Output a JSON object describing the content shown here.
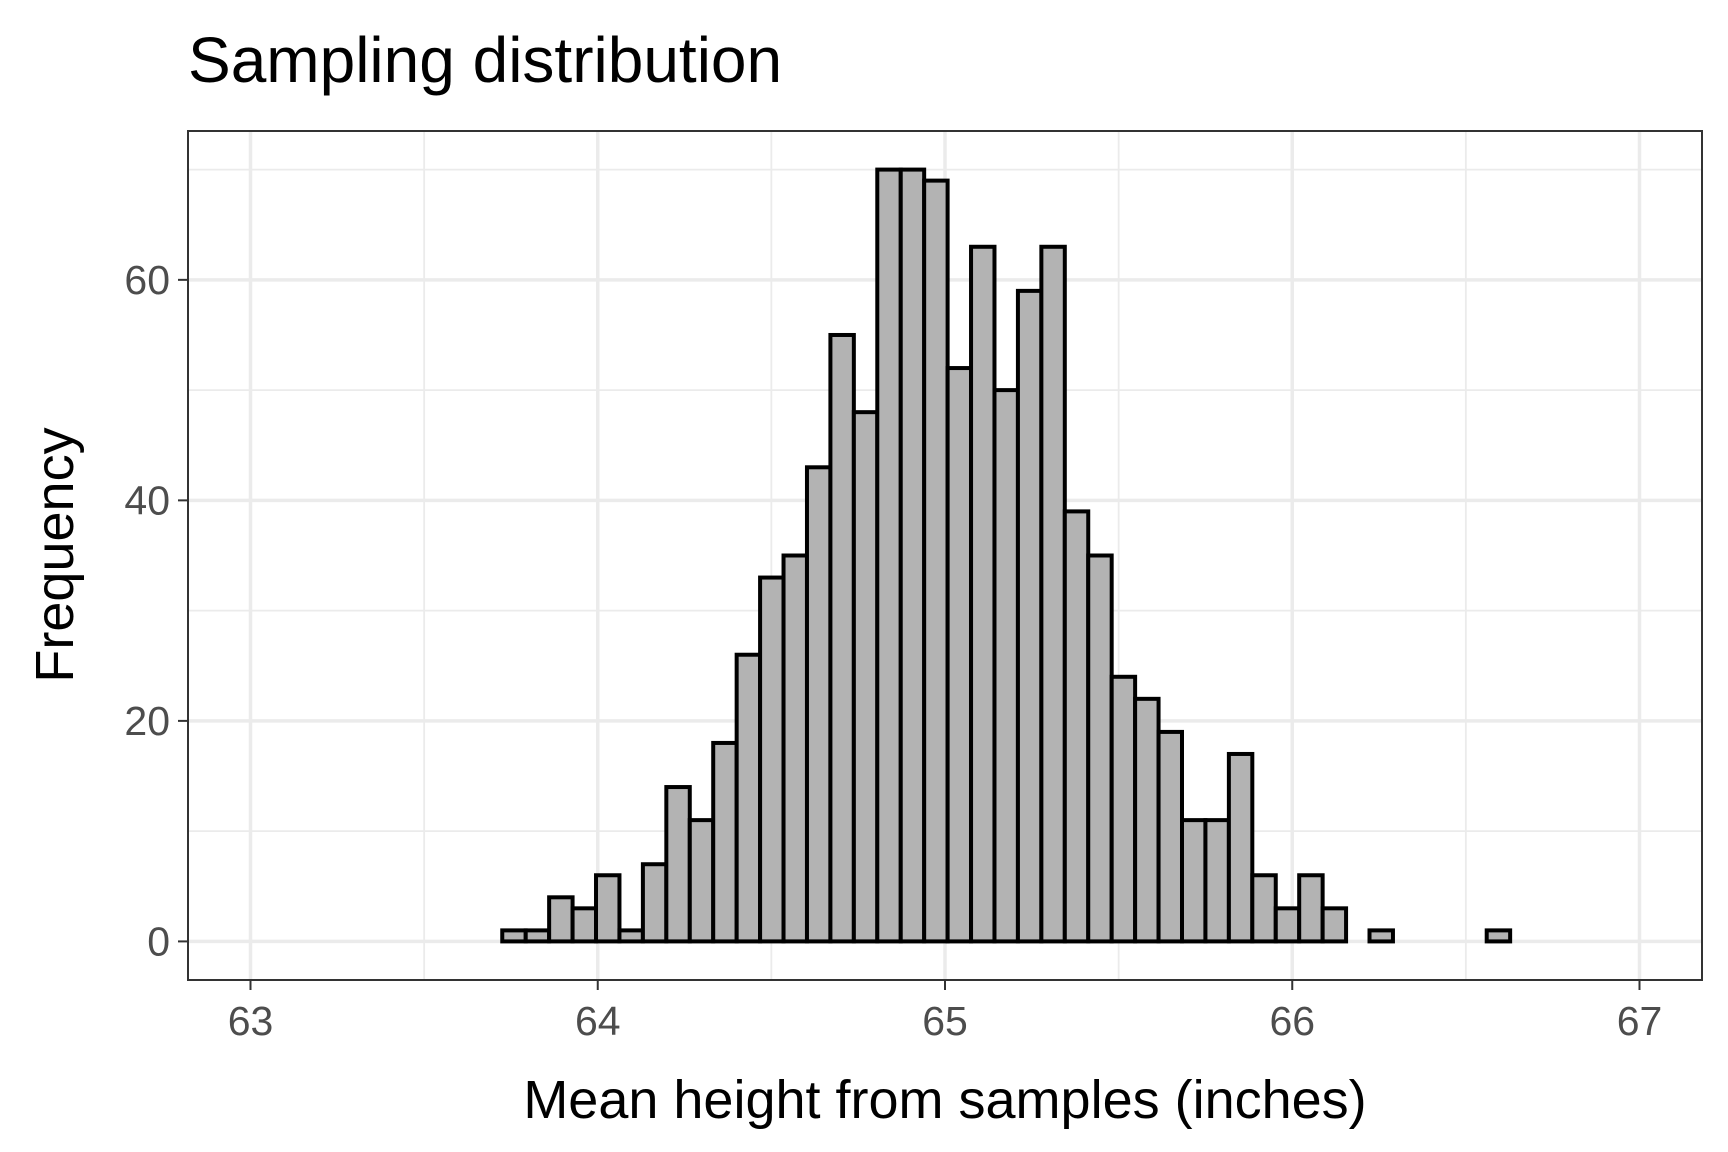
{
  "chart_data": {
    "type": "bar",
    "title": "Sampling distribution",
    "xlabel": "Mean height from samples (inches)",
    "ylabel": "Frequency",
    "xlim": [
      62.82,
      67.18
    ],
    "ylim": [
      -3.5,
      73.5
    ],
    "x_ticks": [
      63,
      64,
      65,
      66,
      67
    ],
    "y_ticks": [
      0,
      20,
      40,
      60
    ],
    "x_tick_labels": [
      "63",
      "64",
      "65",
      "66",
      "67"
    ],
    "y_tick_labels": [
      "0",
      "20",
      "40",
      "60"
    ],
    "grid": true,
    "bin_start": 63.05,
    "bin_width": 0.0675,
    "values": [
      0,
      0,
      0,
      0,
      0,
      0,
      0,
      0,
      0,
      0,
      1,
      1,
      4,
      3,
      6,
      1,
      7,
      14,
      11,
      18,
      26,
      33,
      35,
      43,
      55,
      48,
      70,
      70,
      69,
      52,
      63,
      50,
      59,
      63,
      39,
      35,
      24,
      22,
      19,
      11,
      11,
      17,
      6,
      3,
      6,
      3,
      0,
      1,
      0,
      0,
      0,
      0,
      1,
      0,
      0,
      0,
      0,
      0,
      0,
      0
    ]
  }
}
